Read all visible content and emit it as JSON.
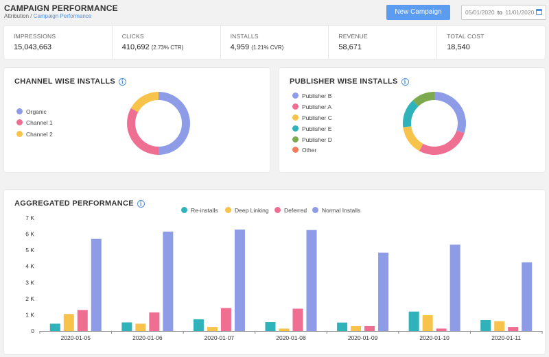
{
  "header": {
    "title": "CAMPAIGN PERFORMANCE",
    "breadcrumb": {
      "parent": "Attribution",
      "separator": "/",
      "current": "Campaign Performance"
    },
    "new_campaign_label": "New Campaign",
    "date_range": {
      "start": "05/01/2020",
      "to": "to",
      "end": "11/01/2020"
    }
  },
  "stats": [
    {
      "label": "IMPRESSIONS",
      "value": "15,043,663",
      "sub": ""
    },
    {
      "label": "CLICKS",
      "value": "410,692",
      "sub": "(2.73% CTR)"
    },
    {
      "label": "INSTALLS",
      "value": "4,959",
      "sub": "(1.21% CVR)"
    },
    {
      "label": "REVENUE",
      "value": "58,671",
      "sub": ""
    },
    {
      "label": "TOTAL COST",
      "value": "18,540",
      "sub": ""
    }
  ],
  "channel_card": {
    "title": "CHANNEL WISE INSTALLS"
  },
  "publisher_card": {
    "title": "PUBLISHER WISE INSTALLS"
  },
  "aggregated_card": {
    "title": "AGGREGATED PERFORMANCE"
  },
  "colors": {
    "blue": "#8e9be6",
    "pink": "#ef6f93",
    "yellow": "#f7c34a",
    "teal": "#2fb2ba",
    "green": "#7daa4f",
    "orange": "#f47c5a",
    "accent": "#5b9bf0"
  },
  "chart_data": [
    {
      "type": "pie",
      "categories": [
        "Organic",
        "Channel 1",
        "Channel 2"
      ],
      "values": [
        50,
        33,
        17
      ],
      "colors": [
        "#8e9be6",
        "#ef6f93",
        "#f7c34a"
      ],
      "title": "CHANNEL WISE INSTALLS",
      "legend": "left"
    },
    {
      "type": "pie",
      "categories": [
        "Publisher B",
        "Publisher A",
        "Publisher C",
        "Publisher E",
        "Publisher D",
        "Other"
      ],
      "values": [
        30,
        28,
        15,
        15,
        12,
        0
      ],
      "colors": [
        "#8e9be6",
        "#ef6f93",
        "#f7c34a",
        "#2fb2ba",
        "#7daa4f",
        "#f47c5a"
      ],
      "title": "PUBLISHER WISE INSTALLS",
      "legend": "left"
    },
    {
      "type": "bar",
      "title": "AGGREGATED PERFORMANCE",
      "categories": [
        "2020-01-05",
        "2020-01-06",
        "2020-01-07",
        "2020-01-08",
        "2020-01-09",
        "2020-01-10",
        "2020-01-11"
      ],
      "series": [
        {
          "name": "Re-installs",
          "color": "#2fb2ba",
          "values": [
            450,
            530,
            720,
            550,
            520,
            1200,
            680
          ]
        },
        {
          "name": "Deep Linking",
          "color": "#f7c34a",
          "values": [
            1050,
            450,
            250,
            150,
            300,
            980,
            600
          ]
        },
        {
          "name": "Deferred",
          "color": "#ef6f93",
          "values": [
            1300,
            1150,
            1420,
            1380,
            300,
            150,
            250
          ]
        },
        {
          "name": "Normal Installs",
          "color": "#8e9be6",
          "values": [
            5700,
            6150,
            6280,
            6250,
            4850,
            5350,
            4250
          ]
        }
      ],
      "yticks": [
        "0",
        "1 K",
        "2 K",
        "3 K",
        "4 K",
        "5 K",
        "6 K",
        "7 K"
      ],
      "ylim": [
        0,
        7000
      ],
      "legend": "top",
      "grid": false
    }
  ]
}
